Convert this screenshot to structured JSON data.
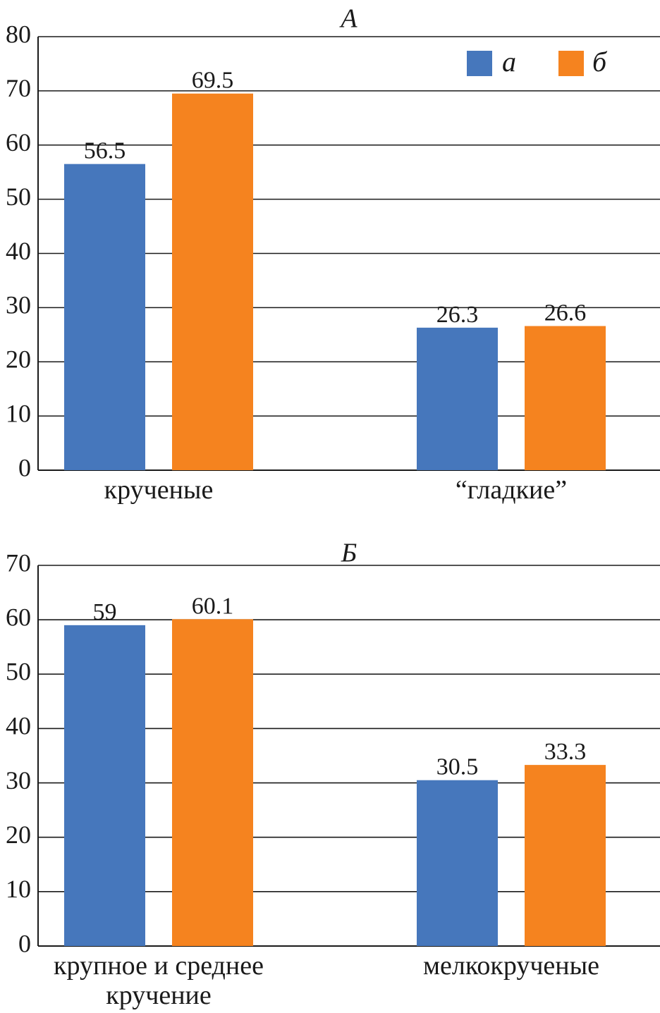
{
  "chart_data": [
    {
      "type": "bar",
      "title": "А",
      "categories": [
        "крученые",
        "“гладкие”"
      ],
      "series": [
        {
          "name": "а",
          "color": "#4677BC",
          "values": [
            56.5,
            26.3
          ]
        },
        {
          "name": "б",
          "color": "#F5831F",
          "values": [
            69.5,
            26.6
          ]
        }
      ],
      "data_labels": [
        [
          "56.5",
          "26.3"
        ],
        [
          "69.5",
          "26.6"
        ]
      ],
      "ylim": [
        0,
        80
      ],
      "yticks": [
        0,
        10,
        20,
        30,
        40,
        50,
        60,
        70,
        80
      ],
      "grid": true,
      "legend": {
        "position": "top-right",
        "entries": [
          "а",
          "б"
        ]
      },
      "xlabel": "",
      "ylabel": ""
    },
    {
      "type": "bar",
      "title": "Б",
      "categories": [
        [
          "крупное и среднее",
          "кручение"
        ],
        [
          "мелкокрученые"
        ]
      ],
      "series": [
        {
          "name": "а",
          "color": "#4677BC",
          "values": [
            59,
            30.5
          ]
        },
        {
          "name": "б",
          "color": "#F5831F",
          "values": [
            60.1,
            33.3
          ]
        }
      ],
      "data_labels": [
        [
          "59",
          "30.5"
        ],
        [
          "60.1",
          "33.3"
        ]
      ],
      "ylim": [
        0,
        70
      ],
      "yticks": [
        0,
        10,
        20,
        30,
        40,
        50,
        60,
        70
      ],
      "grid": true,
      "legend": null,
      "xlabel": "",
      "ylabel": ""
    }
  ]
}
